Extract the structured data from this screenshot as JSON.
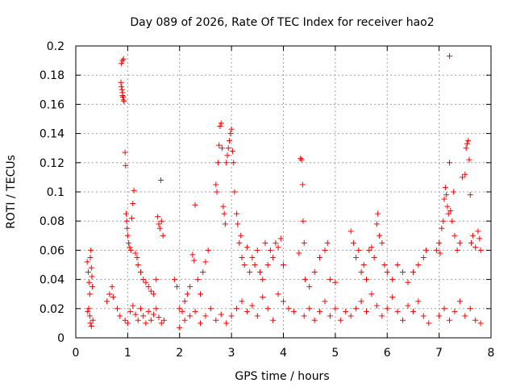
{
  "chart_data": {
    "type": "scatter",
    "title": "Day 089 of 2026, Rate Of TEC Index for receiver hao2",
    "xlabel": "GPS time / hours",
    "ylabel": "ROTI / TECUs",
    "xlim": [
      0,
      8
    ],
    "ylim": [
      0,
      0.2
    ],
    "xticks": [
      0,
      1,
      2,
      3,
      4,
      5,
      6,
      7,
      8
    ],
    "xtick_labels": [
      "0",
      "1",
      "2",
      "3",
      "4",
      "5",
      "6",
      "7",
      "8"
    ],
    "yticks": [
      0,
      0.02,
      0.04,
      0.06,
      0.08,
      0.1,
      0.12,
      0.14,
      0.16,
      0.18,
      0.2
    ],
    "ytick_labels": [
      "0",
      "0.02",
      "0.04",
      "0.06",
      "0.08",
      "0.1",
      "0.12",
      "0.14",
      "0.16",
      "0.18",
      "0.2"
    ],
    "grid": true,
    "marker": "plus",
    "color": "#ff0000",
    "series": [
      {
        "points": [
          [
            0.22,
            0.052
          ],
          [
            0.24,
            0.045
          ],
          [
            0.26,
            0.038
          ],
          [
            0.27,
            0.03
          ],
          [
            0.28,
            0.055
          ],
          [
            0.29,
            0.06
          ],
          [
            0.3,
            0.048
          ],
          [
            0.31,
            0.042
          ],
          [
            0.32,
            0.035
          ],
          [
            0.25,
            0.02
          ],
          [
            0.27,
            0.015
          ],
          [
            0.28,
            0.01
          ],
          [
            0.3,
            0.008
          ],
          [
            0.33,
            0.012
          ],
          [
            0.23,
            0.018
          ],
          [
            0.6,
            0.025
          ],
          [
            0.65,
            0.03
          ],
          [
            0.7,
            0.035
          ],
          [
            0.72,
            0.028
          ],
          [
            0.88,
            0.188
          ],
          [
            0.9,
            0.19
          ],
          [
            0.92,
            0.191
          ],
          [
            0.87,
            0.175
          ],
          [
            0.88,
            0.172
          ],
          [
            0.89,
            0.17
          ],
          [
            0.9,
            0.168
          ],
          [
            0.91,
            0.165
          ],
          [
            0.92,
            0.163
          ],
          [
            0.93,
            0.162
          ],
          [
            0.9,
            0.166
          ],
          [
            0.95,
            0.127
          ],
          [
            0.96,
            0.118
          ],
          [
            0.97,
            0.085
          ],
          [
            0.98,
            0.08
          ],
          [
            0.99,
            0.075
          ],
          [
            1.0,
            0.07
          ],
          [
            1.02,
            0.065
          ],
          [
            1.04,
            0.062
          ],
          [
            1.06,
            0.06
          ],
          [
            1.08,
            0.082
          ],
          [
            1.1,
            0.092
          ],
          [
            1.12,
            0.101
          ],
          [
            1.15,
            0.058
          ],
          [
            1.18,
            0.055
          ],
          [
            1.2,
            0.05
          ],
          [
            1.25,
            0.045
          ],
          [
            1.3,
            0.04
          ],
          [
            1.35,
            0.038
          ],
          [
            1.4,
            0.035
          ],
          [
            1.45,
            0.032
          ],
          [
            1.5,
            0.03
          ],
          [
            1.55,
            0.04
          ],
          [
            1.58,
            0.083
          ],
          [
            1.6,
            0.078
          ],
          [
            1.62,
            0.075
          ],
          [
            1.64,
            0.108
          ],
          [
            1.65,
            0.08
          ],
          [
            1.68,
            0.07
          ],
          [
            0.8,
            0.02
          ],
          [
            0.85,
            0.015
          ],
          [
            0.95,
            0.012
          ],
          [
            1.0,
            0.01
          ],
          [
            1.05,
            0.018
          ],
          [
            1.1,
            0.022
          ],
          [
            1.15,
            0.016
          ],
          [
            1.2,
            0.012
          ],
          [
            1.25,
            0.02
          ],
          [
            1.3,
            0.015
          ],
          [
            1.35,
            0.01
          ],
          [
            1.4,
            0.018
          ],
          [
            1.45,
            0.012
          ],
          [
            1.5,
            0.016
          ],
          [
            1.55,
            0.02
          ],
          [
            1.6,
            0.014
          ],
          [
            1.65,
            0.01
          ],
          [
            1.7,
            0.012
          ],
          [
            1.9,
            0.04
          ],
          [
            1.95,
            0.035
          ],
          [
            2.0,
            0.02
          ],
          [
            2.05,
            0.018
          ],
          [
            2.1,
            0.025
          ],
          [
            2.15,
            0.03
          ],
          [
            2.2,
            0.035
          ],
          [
            2.25,
            0.057
          ],
          [
            2.28,
            0.053
          ],
          [
            2.3,
            0.091
          ],
          [
            2.35,
            0.04
          ],
          [
            2.4,
            0.03
          ],
          [
            2.45,
            0.045
          ],
          [
            2.5,
            0.052
          ],
          [
            2.55,
            0.06
          ],
          [
            2.0,
            0.007
          ],
          [
            2.1,
            0.012
          ],
          [
            2.2,
            0.015
          ],
          [
            2.3,
            0.018
          ],
          [
            2.4,
            0.01
          ],
          [
            2.5,
            0.015
          ],
          [
            2.6,
            0.02
          ],
          [
            2.7,
            0.012
          ],
          [
            2.8,
            0.016
          ],
          [
            2.9,
            0.01
          ],
          [
            2.7,
            0.105
          ],
          [
            2.72,
            0.1
          ],
          [
            2.74,
            0.12
          ],
          [
            2.76,
            0.132
          ],
          [
            2.78,
            0.145
          ],
          [
            2.8,
            0.147
          ],
          [
            2.82,
            0.13
          ],
          [
            2.84,
            0.09
          ],
          [
            2.86,
            0.085
          ],
          [
            2.88,
            0.078
          ],
          [
            2.9,
            0.12
          ],
          [
            2.92,
            0.125
          ],
          [
            2.94,
            0.13
          ],
          [
            2.96,
            0.135
          ],
          [
            2.98,
            0.14
          ],
          [
            3.0,
            0.143
          ],
          [
            3.02,
            0.128
          ],
          [
            3.04,
            0.12
          ],
          [
            3.06,
            0.1
          ],
          [
            3.1,
            0.085
          ],
          [
            3.12,
            0.078
          ],
          [
            3.15,
            0.065
          ],
          [
            3.18,
            0.07
          ],
          [
            3.2,
            0.055
          ],
          [
            3.25,
            0.05
          ],
          [
            3.3,
            0.062
          ],
          [
            3.35,
            0.045
          ],
          [
            3.4,
            0.055
          ],
          [
            3.45,
            0.05
          ],
          [
            3.5,
            0.06
          ],
          [
            3.55,
            0.045
          ],
          [
            3.6,
            0.04
          ],
          [
            3.65,
            0.065
          ],
          [
            3.7,
            0.05
          ],
          [
            3.75,
            0.06
          ],
          [
            3.8,
            0.055
          ],
          [
            3.85,
            0.065
          ],
          [
            3.9,
            0.062
          ],
          [
            3.95,
            0.068
          ],
          [
            4.0,
            0.05
          ],
          [
            3.0,
            0.015
          ],
          [
            3.1,
            0.02
          ],
          [
            3.2,
            0.025
          ],
          [
            3.3,
            0.018
          ],
          [
            3.4,
            0.022
          ],
          [
            3.5,
            0.015
          ],
          [
            3.6,
            0.028
          ],
          [
            3.7,
            0.02
          ],
          [
            3.8,
            0.012
          ],
          [
            3.9,
            0.03
          ],
          [
            4.0,
            0.025
          ],
          [
            4.1,
            0.02
          ],
          [
            4.2,
            0.018
          ],
          [
            4.3,
            0.058
          ],
          [
            4.33,
            0.123
          ],
          [
            4.35,
            0.122
          ],
          [
            4.37,
            0.105
          ],
          [
            4.38,
            0.08
          ],
          [
            4.4,
            0.065
          ],
          [
            4.42,
            0.04
          ],
          [
            4.5,
            0.035
          ],
          [
            4.6,
            0.045
          ],
          [
            4.7,
            0.055
          ],
          [
            4.8,
            0.06
          ],
          [
            4.85,
            0.065
          ],
          [
            4.9,
            0.04
          ],
          [
            5.0,
            0.038
          ],
          [
            4.4,
            0.015
          ],
          [
            4.5,
            0.02
          ],
          [
            4.6,
            0.012
          ],
          [
            4.7,
            0.018
          ],
          [
            4.8,
            0.025
          ],
          [
            4.9,
            0.015
          ],
          [
            5.0,
            0.02
          ],
          [
            5.1,
            0.012
          ],
          [
            5.2,
            0.018
          ],
          [
            5.3,
            0.073
          ],
          [
            5.35,
            0.065
          ],
          [
            5.4,
            0.055
          ],
          [
            5.45,
            0.06
          ],
          [
            5.5,
            0.045
          ],
          [
            5.55,
            0.05
          ],
          [
            5.6,
            0.04
          ],
          [
            5.65,
            0.06
          ],
          [
            5.7,
            0.062
          ],
          [
            5.75,
            0.055
          ],
          [
            5.8,
            0.078
          ],
          [
            5.82,
            0.085
          ],
          [
            5.85,
            0.07
          ],
          [
            5.9,
            0.065
          ],
          [
            5.95,
            0.05
          ],
          [
            6.0,
            0.045
          ],
          [
            6.1,
            0.04
          ],
          [
            6.2,
            0.05
          ],
          [
            6.3,
            0.045
          ],
          [
            6.4,
            0.038
          ],
          [
            6.5,
            0.045
          ],
          [
            6.6,
            0.05
          ],
          [
            6.7,
            0.055
          ],
          [
            6.75,
            0.06
          ],
          [
            5.3,
            0.015
          ],
          [
            5.4,
            0.02
          ],
          [
            5.5,
            0.025
          ],
          [
            5.6,
            0.018
          ],
          [
            5.7,
            0.03
          ],
          [
            5.8,
            0.022
          ],
          [
            5.9,
            0.015
          ],
          [
            6.0,
            0.02
          ],
          [
            6.1,
            0.028
          ],
          [
            6.2,
            0.018
          ],
          [
            6.3,
            0.012
          ],
          [
            6.4,
            0.022
          ],
          [
            6.5,
            0.018
          ],
          [
            6.6,
            0.025
          ],
          [
            6.7,
            0.015
          ],
          [
            6.8,
            0.01
          ],
          [
            6.95,
            0.06
          ],
          [
            7.0,
            0.065
          ],
          [
            7.02,
            0.058
          ],
          [
            7.05,
            0.075
          ],
          [
            7.08,
            0.08
          ],
          [
            7.1,
            0.095
          ],
          [
            7.12,
            0.103
          ],
          [
            7.14,
            0.098
          ],
          [
            7.16,
            0.09
          ],
          [
            7.18,
            0.085
          ],
          [
            7.2,
            0.12
          ],
          [
            7.22,
            0.087
          ],
          [
            7.25,
            0.08
          ],
          [
            7.28,
            0.1
          ],
          [
            7.3,
            0.07
          ],
          [
            7.35,
            0.06
          ],
          [
            7.4,
            0.065
          ],
          [
            7.45,
            0.11
          ],
          [
            7.5,
            0.112
          ],
          [
            7.52,
            0.13
          ],
          [
            7.54,
            0.133
          ],
          [
            7.56,
            0.135
          ],
          [
            7.58,
            0.122
          ],
          [
            7.6,
            0.098
          ],
          [
            7.62,
            0.065
          ],
          [
            7.65,
            0.07
          ],
          [
            7.7,
            0.062
          ],
          [
            7.75,
            0.073
          ],
          [
            7.78,
            0.068
          ],
          [
            7.8,
            0.06
          ],
          [
            7.2,
            0.193
          ],
          [
            7.0,
            0.015
          ],
          [
            7.1,
            0.02
          ],
          [
            7.2,
            0.012
          ],
          [
            7.3,
            0.018
          ],
          [
            7.4,
            0.025
          ],
          [
            7.5,
            0.015
          ],
          [
            7.6,
            0.02
          ],
          [
            7.7,
            0.012
          ],
          [
            7.8,
            0.01
          ]
        ]
      }
    ]
  }
}
